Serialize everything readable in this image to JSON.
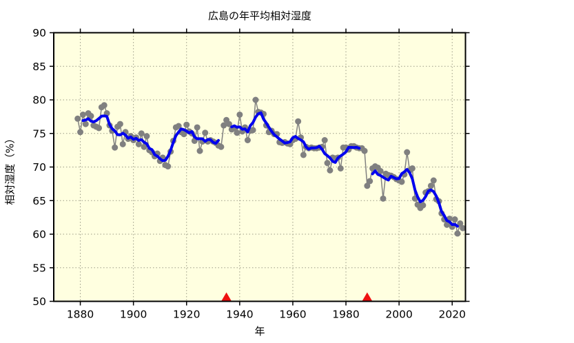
{
  "chart_data": {
    "type": "line",
    "title": "広島の年平均相対湿度",
    "xlabel": "年",
    "ylabel": "相対湿度（%）",
    "xlim": [
      1870,
      2025
    ],
    "ylim": [
      50,
      90
    ],
    "x_ticks": [
      1880,
      1900,
      1920,
      1940,
      1960,
      1980,
      2000,
      2020
    ],
    "y_ticks": [
      50,
      55,
      60,
      65,
      70,
      75,
      80,
      85,
      90
    ],
    "grid": true,
    "legend": "none",
    "plot_background": "#ffffe0",
    "grid_color": "#9a9a85",
    "series": [
      {
        "name": "annual-mean-relative-humidity",
        "style": "gray dots connected by thin gray line",
        "color": "#808080",
        "start_year": 1879,
        "values": [
          77.2,
          75.2,
          77.8,
          76.4,
          78.0,
          77.6,
          76.2,
          76.0,
          75.8,
          78.9,
          79.2,
          78.0,
          76.2,
          75.4,
          72.9,
          76.0,
          76.4,
          73.4,
          75.2,
          74.2,
          74.6,
          74.0,
          74.4,
          73.4,
          75.0,
          73.0,
          74.6,
          72.5,
          72.2,
          71.6,
          72.0,
          70.9,
          71.4,
          70.3,
          70.1,
          72.3,
          73.9,
          75.9,
          76.1,
          75.2,
          74.9,
          76.3,
          75.3,
          75.0,
          73.9,
          75.9,
          72.4,
          73.8,
          75.1,
          73.8,
          74.0,
          73.8,
          73.6,
          73.2,
          73.0,
          76.2,
          77.0,
          76.4,
          75.6,
          75.8,
          75.1,
          77.8,
          75.3,
          75.9,
          74.0,
          75.4,
          75.5,
          80.0,
          78.2,
          78.1,
          77.9,
          76.2,
          75.2,
          75.4,
          74.9,
          74.9,
          73.7,
          73.6,
          73.7,
          73.5,
          73.4,
          74.0,
          74.2,
          76.8,
          74.4,
          71.8,
          73.0,
          72.8,
          72.9,
          72.8,
          72.8,
          72.9,
          73.0,
          74.0,
          70.6,
          69.5,
          71.4,
          71.3,
          71.4,
          69.8,
          72.9,
          72.9,
          72.6,
          73.1,
          73.1,
          72.9,
          72.8,
          72.8,
          72.4,
          67.2,
          67.9,
          69.8,
          70.1,
          69.9,
          69.4,
          65.3,
          69.0,
          68.8,
          68.7,
          68.5,
          68.2,
          68.0,
          67.8,
          68.9,
          72.2,
          69.5,
          69.8,
          65.3,
          64.4,
          63.9,
          64.3,
          66.2,
          66.4,
          67.2,
          68.0,
          65.2,
          64.9,
          63.1,
          62.2,
          61.4,
          62.3,
          61.1,
          62.2,
          60.1,
          61.6,
          60.9
        ]
      },
      {
        "name": "smoothed-running-mean",
        "style": "thick blue line, 5-year running mean, broken at station relocations",
        "color": "#0000ee",
        "derived_from": "annual-mean-relative-humidity",
        "window": 5
      }
    ],
    "annotations": {
      "relocation_marker_years": [
        1935,
        1988
      ],
      "marker_shape": "filled triangle on x-axis pointing up",
      "marker_color": "#ee1111"
    }
  }
}
